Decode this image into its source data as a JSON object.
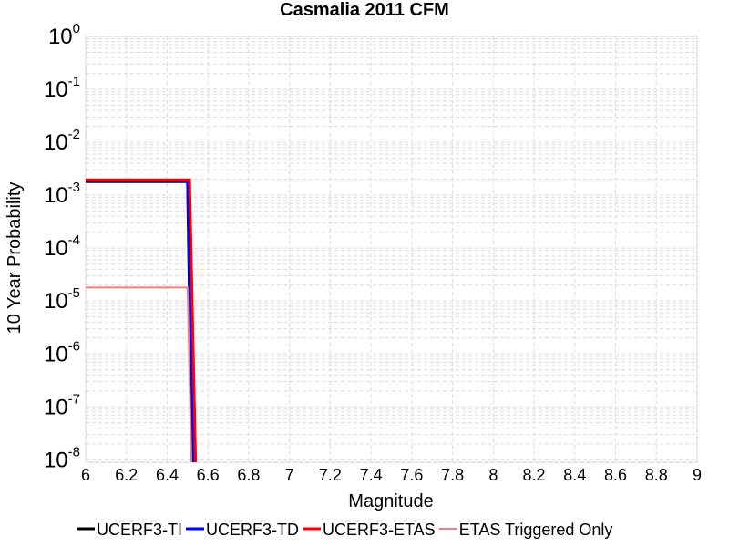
{
  "chart_data": {
    "type": "line",
    "title": "Casmalia 2011 CFM",
    "x_label": "Magnitude",
    "y_label": "10 Year Probability",
    "log_y": true,
    "grid": true,
    "minor_grid": true,
    "legend": "bottom",
    "xlim": [
      6,
      9
    ],
    "ylim": [
      9e-09,
      1
    ],
    "xticks": [
      6,
      6.2,
      6.4,
      6.6,
      6.8,
      7,
      7.2,
      7.4,
      7.6,
      7.8,
      8,
      8.2,
      8.4,
      8.6,
      8.8,
      9
    ],
    "yticks": [
      {
        "value": 1,
        "label": "10",
        "exponent": "0"
      },
      {
        "value": 0.1,
        "label": "10",
        "exponent": "-1"
      },
      {
        "value": 0.01,
        "label": "10",
        "exponent": "-2"
      },
      {
        "value": 0.001,
        "label": "10",
        "exponent": "-3"
      },
      {
        "value": 0.0001,
        "label": "10",
        "exponent": "-4"
      },
      {
        "value": 1e-05,
        "label": "10",
        "exponent": "-5"
      },
      {
        "value": 1e-06,
        "label": "10",
        "exponent": "-6"
      },
      {
        "value": 1e-07,
        "label": "10",
        "exponent": "-7"
      },
      {
        "value": 1e-08,
        "label": "10",
        "exponent": "-8"
      }
    ],
    "series": [
      {
        "name": "UCERF3-TI",
        "color": "#000000",
        "width": 3,
        "x": [
          6,
          6.5,
          6.53
        ],
        "values": [
          0.0018,
          0.0018,
          1e-10
        ]
      },
      {
        "name": "UCERF3-TD",
        "color": "#0000ff",
        "width": 3,
        "x": [
          6,
          6.5,
          6.54
        ],
        "values": [
          0.00185,
          0.00185,
          1e-10
        ]
      },
      {
        "name": "UCERF3-ETAS",
        "color": "#ff0000",
        "width": 3,
        "x": [
          6,
          6.51,
          6.55
        ],
        "values": [
          0.00195,
          0.00195,
          1e-10
        ]
      },
      {
        "name": "ETAS Triggered Only",
        "color": "#f08080",
        "width": 2,
        "x": [
          6,
          6.5,
          6.53
        ],
        "values": [
          1.8e-05,
          1.8e-05,
          1e-10
        ]
      }
    ]
  }
}
